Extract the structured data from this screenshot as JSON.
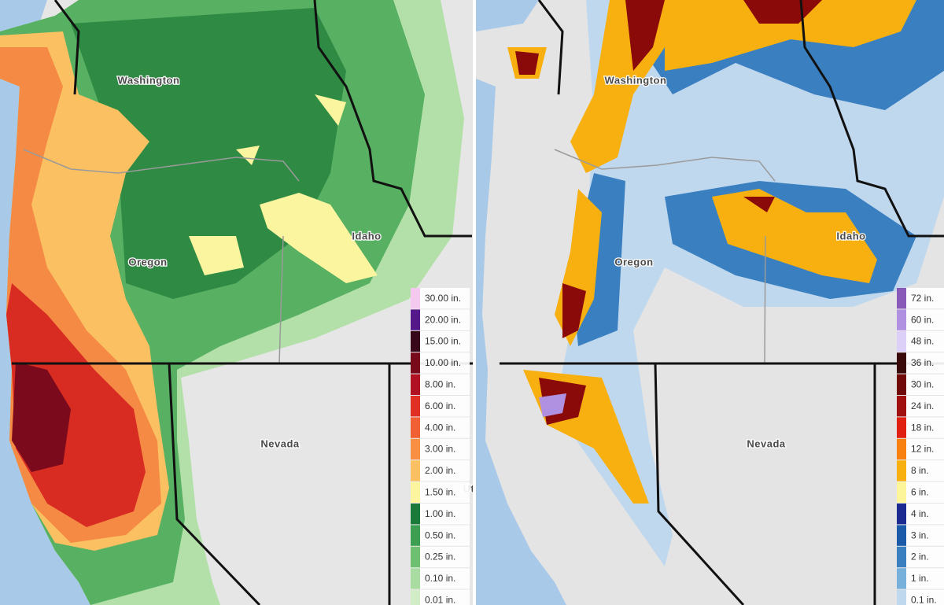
{
  "maps": [
    {
      "states": [
        "Washington",
        "Oregon",
        "Idaho",
        "Nevada",
        "Ut"
      ],
      "legend": [
        {
          "label": "30.00 in.",
          "color": "#f5c8f0"
        },
        {
          "label": "20.00 in.",
          "color": "#55188a"
        },
        {
          "label": "15.00 in.",
          "color": "#38081a"
        },
        {
          "label": "10.00 in.",
          "color": "#780a1c"
        },
        {
          "label": "8.00 in.",
          "color": "#b01222"
        },
        {
          "label": "6.00 in.",
          "color": "#e03024"
        },
        {
          "label": "4.00 in.",
          "color": "#f06032"
        },
        {
          "label": "3.00 in.",
          "color": "#f89044"
        },
        {
          "label": "2.00 in.",
          "color": "#fbc062"
        },
        {
          "label": "1.50 in.",
          "color": "#fbf5a0"
        },
        {
          "label": "1.00 in.",
          "color": "#1a7a3a"
        },
        {
          "label": "0.50 in.",
          "color": "#3c9e50"
        },
        {
          "label": "0.25 in.",
          "color": "#6cc070"
        },
        {
          "label": "0.10 in.",
          "color": "#a8dca0"
        },
        {
          "label": "0.01 in.",
          "color": "#d2ecc8"
        }
      ]
    },
    {
      "states": [
        "Washington",
        "Oregon",
        "Idaho",
        "Nevada"
      ],
      "legend": [
        {
          "label": "72 in.",
          "color": "#8a5ab8"
        },
        {
          "label": "60 in.",
          "color": "#b090e0"
        },
        {
          "label": "48 in.",
          "color": "#dcd0f8"
        },
        {
          "label": "36 in.",
          "color": "#3a0a0a"
        },
        {
          "label": "30 in.",
          "color": "#700a0a"
        },
        {
          "label": "24 in.",
          "color": "#a01010"
        },
        {
          "label": "18 in.",
          "color": "#e02010"
        },
        {
          "label": "12 in.",
          "color": "#f88010"
        },
        {
          "label": "8 in.",
          "color": "#f8b010"
        },
        {
          "label": "6 in.",
          "color": "#fcf59a"
        },
        {
          "label": "4 in.",
          "color": "#1a2a90"
        },
        {
          "label": "3 in.",
          "color": "#1a5aa8"
        },
        {
          "label": "2 in.",
          "color": "#3a80c0"
        },
        {
          "label": "1 in.",
          "color": "#78b0dc"
        },
        {
          "label": "0.1 in.",
          "color": "#c0d8ee"
        }
      ]
    }
  ]
}
